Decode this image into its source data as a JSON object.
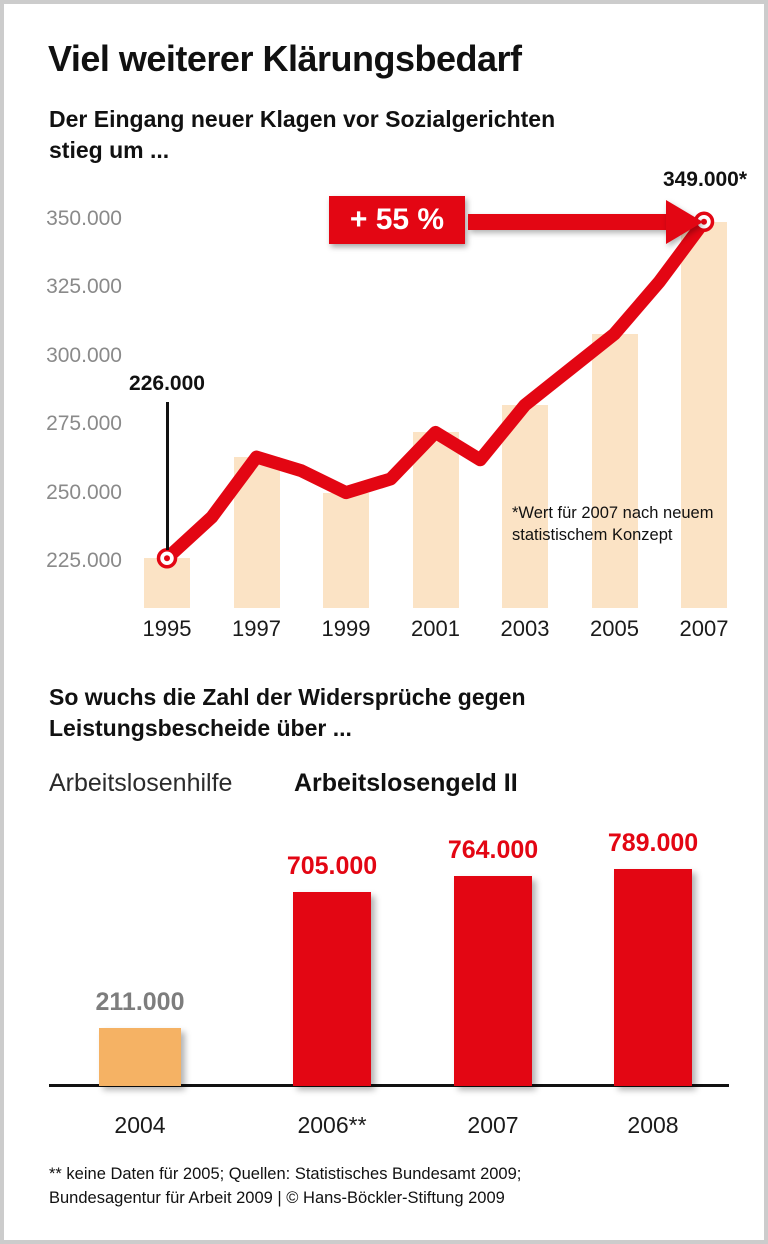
{
  "colors": {
    "red": "#e30613",
    "stripe": "#fbe3c5",
    "orange": "#f5b264",
    "axis_gray": "#8a8a8a"
  },
  "header": {
    "title": "Viel weiterer Klärungsbedarf",
    "subtitle_line1": "Der Eingang neuer Klagen vor Sozialgerichten",
    "subtitle_line2": "stieg um ..."
  },
  "chart_data": [
    {
      "type": "line",
      "title": "Der Eingang neuer Klagen vor Sozialgerichten stieg um ...",
      "x": [
        1995,
        1996,
        1997,
        1998,
        1999,
        2000,
        2001,
        2002,
        2003,
        2004,
        2005,
        2006,
        2007
      ],
      "values": [
        226000,
        241000,
        263000,
        258000,
        250000,
        255000,
        272000,
        262000,
        282000,
        295000,
        308000,
        327000,
        349000
      ],
      "ylim": [
        225000,
        350000
      ],
      "yticks": [
        {
          "value": 350000,
          "label": "350.000"
        },
        {
          "value": 325000,
          "label": "325.000"
        },
        {
          "value": 300000,
          "label": "300.000"
        },
        {
          "value": 275000,
          "label": "275.000"
        },
        {
          "value": 250000,
          "label": "250.000"
        },
        {
          "value": 225000,
          "label": "225.000"
        }
      ],
      "xticks": [
        {
          "year": 1995,
          "label": "1995"
        },
        {
          "year": 1997,
          "label": "1997"
        },
        {
          "year": 1999,
          "label": "1999"
        },
        {
          "year": 2001,
          "label": "2001"
        },
        {
          "year": 2003,
          "label": "2003"
        },
        {
          "year": 2005,
          "label": "2005"
        },
        {
          "year": 2007,
          "label": "2007"
        }
      ],
      "annotations": {
        "start_label": "226.000",
        "end_label": "349.000*",
        "badge": "+ 55 %",
        "footnote_line1": "*Wert für 2007 nach neuem",
        "footnote_line2": "statistischem Konzept"
      },
      "colors": {
        "line": "#e30613",
        "stripe": "#fbe3c5"
      }
    },
    {
      "type": "bar",
      "title": "So wuchs die Zahl der Widersprüche gegen Leistungsbescheide über ...",
      "categories": [
        "2004",
        "2006**",
        "2007",
        "2008"
      ],
      "values": [
        211000,
        705000,
        764000,
        789000
      ],
      "labels": [
        "211.000",
        "705.000",
        "764.000",
        "789.000"
      ],
      "bar_colors": [
        "#f5b264",
        "#e30613",
        "#e30613",
        "#e30613"
      ],
      "label_colors": [
        "#7d7d7d",
        "#e30613",
        "#e30613",
        "#e30613"
      ],
      "groups": {
        "left": "Arbeitslosenhilfe",
        "right": "Arbeitslosengeld II"
      }
    }
  ],
  "section2": {
    "heading_line1": "So wuchs die Zahl der Widersprüche gegen",
    "heading_line2": "Leistungsbescheide über ...",
    "category_left": "Arbeitslosenhilfe",
    "category_right": "Arbeitslosengeld II"
  },
  "footer": {
    "line1": "** keine Daten für 2005; Quellen: Statistisches Bundesamt 2009;",
    "line2": "Bundesagentur für Arbeit 2009 | © Hans-Böckler-Stiftung 2009"
  }
}
